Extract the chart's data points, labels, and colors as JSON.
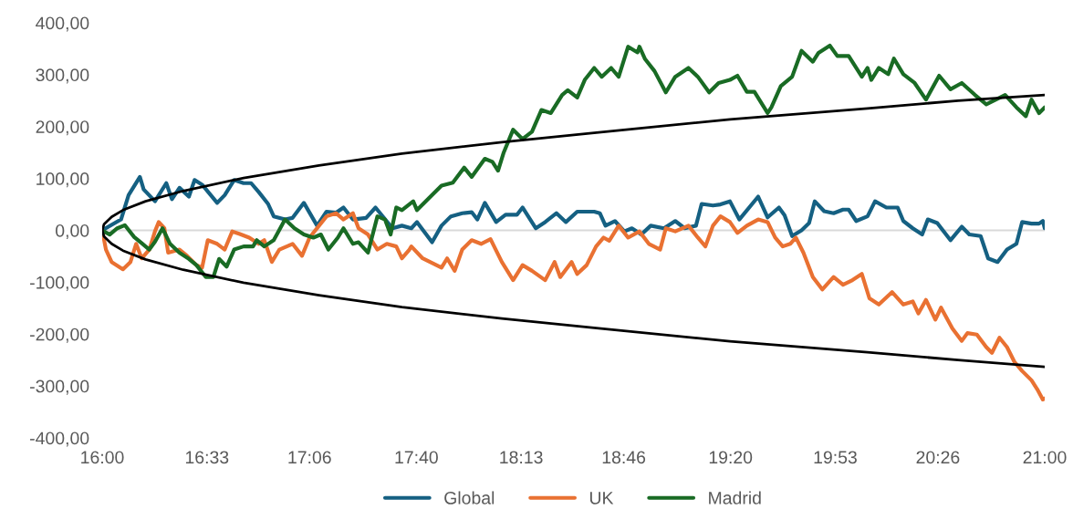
{
  "chart_data": {
    "type": "line",
    "xlim": [
      16,
      21
    ],
    "xticks": [
      {
        "value": 16,
        "label": "16:00"
      },
      {
        "value": 16.5556,
        "label": "16:33"
      },
      {
        "value": 17.1,
        "label": "17:06"
      },
      {
        "value": 17.6667,
        "label": "17:40"
      },
      {
        "value": 18.2222,
        "label": "18:13"
      },
      {
        "value": 18.7667,
        "label": "18:46"
      },
      {
        "value": 19.3333,
        "label": "19:20"
      },
      {
        "value": 19.8889,
        "label": "19:53"
      },
      {
        "value": 20.4333,
        "label": "20:26"
      },
      {
        "value": 21,
        "label": "21:00"
      }
    ],
    "ylim": [
      -400,
      400
    ],
    "yticks": [
      {
        "value": -400,
        "label": "-400,00"
      },
      {
        "value": -300,
        "label": "-300,00"
      },
      {
        "value": -200,
        "label": "-200,00"
      },
      {
        "value": -100,
        "label": "-100,00"
      },
      {
        "value": 0,
        "label": "0,00"
      },
      {
        "value": 100,
        "label": "100,00"
      },
      {
        "value": 200,
        "label": "200,00"
      },
      {
        "value": 300,
        "label": "300,00"
      },
      {
        "value": 400,
        "label": "400,00"
      }
    ],
    "grid": false,
    "legend": "bottom",
    "ref_lines": [
      {
        "axis": "y",
        "value": 0,
        "color": "#d9d9d9"
      }
    ],
    "series": [
      {
        "name": "Global",
        "color": "#156082",
        "x": [
          16.0,
          16.1,
          16.14,
          16.2,
          16.22,
          16.28,
          16.34,
          16.37,
          16.41,
          16.46,
          16.49,
          16.53,
          16.61,
          16.65,
          16.7,
          16.75,
          16.79,
          16.83,
          16.88,
          16.91,
          16.97,
          17.01,
          17.07,
          17.14,
          17.19,
          17.24,
          17.28,
          17.33,
          17.4,
          17.45,
          17.54,
          17.59,
          17.64,
          17.67,
          17.75,
          17.8,
          17.85,
          17.91,
          17.96,
          17.99,
          18.03,
          18.09,
          18.14,
          18.2,
          18.23,
          18.3,
          18.35,
          18.41,
          18.46,
          18.52,
          18.61,
          18.64,
          18.67,
          18.72,
          18.77,
          18.81,
          18.86,
          18.91,
          18.98,
          19.04,
          19.09,
          19.15,
          19.18,
          19.24,
          19.28,
          19.33,
          19.38,
          19.48,
          19.53,
          19.59,
          19.62,
          19.66,
          19.71,
          19.75,
          19.78,
          19.83,
          19.88,
          19.93,
          19.96,
          20.0,
          20.06,
          20.1,
          20.16,
          20.22,
          20.25,
          20.3,
          20.35,
          20.38,
          20.43,
          20.5,
          20.56,
          20.6,
          20.66,
          20.7,
          20.75,
          20.8,
          20.85,
          20.88,
          20.93,
          20.97,
          20.99,
          21.0
        ],
        "values": [
          0,
          21,
          68,
          103,
          79,
          56,
          91,
          60,
          82,
          65,
          97,
          88,
          53,
          68,
          97,
          91,
          91,
          74,
          51,
          27,
          21,
          24,
          53,
          9,
          36,
          34,
          44,
          21,
          24,
          44,
          4,
          9,
          4,
          16,
          -23,
          9,
          27,
          33,
          35,
          21,
          53,
          16,
          30,
          30,
          44,
          4,
          16,
          33,
          16,
          36,
          36,
          33,
          9,
          18,
          -2,
          4,
          -8,
          9,
          4,
          18,
          4,
          9,
          51,
          48,
          50,
          56,
          21,
          65,
          25,
          44,
          29,
          -11,
          0,
          14,
          56,
          37,
          33,
          40,
          40,
          18,
          27,
          56,
          44,
          44,
          18,
          4,
          -8,
          21,
          14,
          -19,
          7,
          -8,
          -11,
          -54,
          -61,
          -37,
          -26,
          16,
          13,
          13,
          18,
          4
        ]
      },
      {
        "name": "UK",
        "color": "#e97132",
        "x": [
          16.0,
          16.02,
          16.05,
          16.11,
          16.15,
          16.18,
          16.21,
          16.25,
          16.28,
          16.3,
          16.33,
          16.35,
          16.41,
          16.45,
          16.5,
          16.53,
          16.56,
          16.61,
          16.65,
          16.69,
          16.73,
          16.78,
          16.83,
          16.86,
          16.9,
          16.94,
          17.01,
          17.06,
          17.1,
          17.19,
          17.24,
          17.28,
          17.33,
          17.36,
          17.41,
          17.46,
          17.51,
          17.56,
          17.59,
          17.63,
          17.64,
          17.7,
          17.8,
          17.83,
          17.87,
          17.91,
          17.96,
          18.01,
          18.06,
          18.12,
          18.18,
          18.23,
          18.28,
          18.35,
          18.4,
          18.43,
          18.49,
          18.52,
          18.57,
          18.62,
          18.66,
          18.69,
          18.74,
          18.79,
          18.85,
          18.9,
          18.96,
          18.99,
          19.04,
          19.11,
          19.16,
          19.2,
          19.24,
          19.28,
          19.33,
          19.37,
          19.42,
          19.48,
          19.53,
          19.57,
          19.61,
          19.65,
          19.68,
          19.72,
          19.77,
          19.82,
          19.88,
          19.93,
          19.98,
          20.03,
          20.07,
          20.12,
          20.19,
          20.25,
          20.3,
          20.33,
          20.37,
          20.42,
          20.45,
          20.51,
          20.56,
          20.59,
          20.64,
          20.69,
          20.72,
          20.76,
          20.8,
          20.84,
          20.88,
          20.93,
          20.96,
          20.99,
          21.0
        ],
        "values": [
          0,
          -37,
          -61,
          -75,
          -61,
          -26,
          -54,
          -37,
          -2,
          16,
          4,
          -43,
          -37,
          -49,
          -67,
          -72,
          -19,
          -26,
          -37,
          -2,
          -7,
          -14,
          -26,
          -19,
          -61,
          -37,
          -26,
          -49,
          -14,
          27,
          33,
          21,
          33,
          4,
          -8,
          -37,
          -26,
          -31,
          -54,
          -37,
          -31,
          -54,
          -72,
          -54,
          -78,
          -37,
          -19,
          -26,
          -17,
          -61,
          -96,
          -67,
          -78,
          -96,
          -61,
          -90,
          -61,
          -84,
          -67,
          -31,
          -14,
          -20,
          9,
          -14,
          -2,
          -26,
          -37,
          4,
          -2,
          9,
          -14,
          -31,
          9,
          27,
          16,
          -5,
          9,
          21,
          16,
          -14,
          -31,
          -26,
          -14,
          -43,
          -90,
          -114,
          -90,
          -105,
          -96,
          -84,
          -131,
          -143,
          -119,
          -143,
          -137,
          -160,
          -134,
          -172,
          -149,
          -189,
          -213,
          -198,
          -201,
          -225,
          -236,
          -207,
          -225,
          -254,
          -271,
          -289,
          -306,
          -326,
          -324
        ]
      },
      {
        "name": "Madrid",
        "color": "#196b24",
        "x": [
          16.0,
          16.04,
          16.08,
          16.12,
          16.17,
          16.21,
          16.25,
          16.28,
          16.32,
          16.36,
          16.41,
          16.46,
          16.5,
          16.55,
          16.59,
          16.62,
          16.66,
          16.7,
          16.75,
          16.8,
          16.82,
          16.86,
          16.91,
          16.97,
          17.02,
          17.07,
          17.12,
          17.16,
          17.2,
          17.25,
          17.28,
          17.33,
          17.36,
          17.41,
          17.46,
          17.5,
          17.53,
          17.56,
          17.59,
          17.65,
          17.67,
          17.75,
          17.8,
          17.86,
          17.92,
          17.96,
          18.03,
          18.07,
          18.1,
          18.13,
          18.18,
          18.23,
          18.28,
          18.33,
          18.38,
          18.44,
          18.47,
          18.52,
          18.56,
          18.61,
          18.65,
          18.7,
          18.74,
          18.79,
          18.84,
          18.85,
          18.88,
          18.93,
          18.99,
          19.04,
          19.11,
          19.16,
          19.22,
          19.27,
          19.33,
          19.37,
          19.42,
          19.46,
          19.53,
          19.55,
          19.6,
          19.66,
          19.71,
          19.77,
          19.8,
          19.86,
          19.9,
          19.96,
          20.03,
          20.06,
          20.08,
          20.12,
          20.17,
          20.2,
          20.25,
          20.31,
          20.37,
          20.44,
          20.5,
          20.56,
          20.63,
          20.69,
          20.79,
          20.85,
          20.9,
          20.93,
          20.97,
          21.0
        ],
        "values": [
          0,
          -8,
          4,
          10,
          -13,
          -25,
          -37,
          -22,
          4,
          -26,
          -43,
          -55,
          -67,
          -90,
          -90,
          -55,
          -70,
          -37,
          -31,
          -31,
          -19,
          -31,
          -19,
          21,
          4,
          -8,
          -14,
          -8,
          -37,
          -14,
          4,
          -26,
          -23,
          -43,
          27,
          21,
          -8,
          44,
          39,
          56,
          39,
          68,
          86,
          92,
          121,
          103,
          138,
          132,
          115,
          150,
          194,
          176,
          190,
          232,
          226,
          261,
          270,
          256,
          290,
          313,
          296,
          313,
          296,
          354,
          343,
          354,
          330,
          307,
          266,
          296,
          313,
          296,
          266,
          284,
          290,
          298,
          267,
          267,
          226,
          237,
          278,
          296,
          346,
          325,
          342,
          356,
          336,
          336,
          296,
          313,
          290,
          313,
          301,
          331,
          301,
          284,
          252,
          298,
          272,
          284,
          261,
          243,
          261,
          237,
          220,
          252,
          226,
          237
        ]
      },
      {
        "color": "#000000",
        "x": [
          16.0,
          16.01,
          16.05,
          16.11,
          16.23,
          16.43,
          16.75,
          17.15,
          17.59,
          18.12,
          18.61,
          19.33,
          20.06,
          20.54,
          21.0
        ],
        "values": [
          0,
          12,
          26,
          39,
          56,
          76,
          101,
          125,
          148,
          170,
          188,
          214,
          235,
          250,
          261
        ]
      },
      {
        "color": "#000000",
        "x": [
          16.0,
          16.01,
          16.05,
          16.11,
          16.23,
          16.43,
          16.75,
          17.15,
          17.59,
          18.12,
          18.61,
          19.33,
          20.06,
          20.54,
          21.0
        ],
        "values": [
          0,
          -12,
          -26,
          -39,
          -56,
          -76,
          -101,
          -125,
          -148,
          -170,
          -188,
          -214,
          -235,
          -250,
          -263
        ]
      }
    ]
  }
}
